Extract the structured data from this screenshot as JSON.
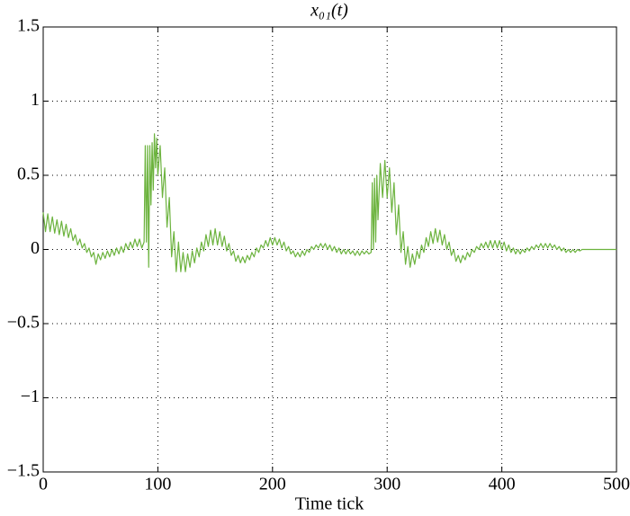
{
  "chart_data": {
    "type": "line",
    "title": "x₀₁(t)",
    "xlabel": "Time tick",
    "xlim": [
      0,
      500
    ],
    "ylim": [
      -1.5,
      1.5
    ],
    "xticks": [
      0,
      100,
      200,
      300,
      400,
      500
    ],
    "yticks": [
      {
        "value": -1.5,
        "label": "−1.5"
      },
      {
        "value": -1,
        "label": "−1"
      },
      {
        "value": -0.5,
        "label": "−0.5"
      },
      0,
      0.5,
      1,
      1.5
    ],
    "grid": true,
    "x": [
      0,
      2,
      4,
      6,
      8,
      10,
      12,
      14,
      16,
      18,
      20,
      22,
      24,
      26,
      28,
      30,
      32,
      34,
      36,
      38,
      40,
      42,
      44,
      46,
      48,
      50,
      52,
      54,
      56,
      58,
      60,
      62,
      64,
      66,
      68,
      70,
      72,
      74,
      76,
      78,
      80,
      82,
      84,
      86,
      88,
      89,
      90,
      91,
      92,
      93,
      94,
      95,
      96,
      97,
      98,
      99,
      100,
      102,
      104,
      106,
      108,
      110,
      112,
      114,
      116,
      118,
      120,
      122,
      124,
      126,
      128,
      130,
      132,
      134,
      136,
      138,
      140,
      142,
      144,
      146,
      148,
      150,
      152,
      154,
      156,
      158,
      160,
      162,
      164,
      166,
      168,
      170,
      172,
      174,
      176,
      178,
      180,
      182,
      184,
      186,
      188,
      190,
      192,
      194,
      196,
      198,
      200,
      202,
      204,
      206,
      208,
      210,
      212,
      214,
      216,
      218,
      220,
      222,
      224,
      226,
      228,
      230,
      232,
      234,
      236,
      238,
      240,
      242,
      244,
      246,
      248,
      250,
      252,
      254,
      256,
      258,
      260,
      262,
      264,
      266,
      268,
      270,
      272,
      274,
      276,
      278,
      280,
      282,
      284,
      286,
      287,
      288,
      289,
      290,
      291,
      292,
      294,
      296,
      298,
      300,
      302,
      304,
      306,
      308,
      310,
      312,
      314,
      316,
      318,
      320,
      322,
      324,
      326,
      328,
      330,
      332,
      334,
      336,
      338,
      340,
      342,
      344,
      346,
      348,
      350,
      352,
      354,
      356,
      358,
      360,
      362,
      364,
      366,
      368,
      370,
      372,
      374,
      376,
      378,
      380,
      382,
      384,
      386,
      388,
      390,
      392,
      394,
      396,
      398,
      400,
      402,
      404,
      406,
      408,
      410,
      412,
      414,
      416,
      418,
      420,
      422,
      424,
      426,
      428,
      430,
      432,
      434,
      436,
      438,
      440,
      442,
      444,
      446,
      448,
      450,
      452,
      454,
      456,
      458,
      460,
      462,
      464,
      466,
      468,
      470,
      472,
      480,
      490,
      500
    ],
    "series": [
      {
        "color": "#6cb33e",
        "values": [
          0.25,
          0.12,
          0.24,
          0.12,
          0.22,
          0.11,
          0.2,
          0.1,
          0.19,
          0.09,
          0.17,
          0.08,
          0.14,
          0.06,
          0.1,
          0.03,
          0.07,
          0.01,
          0.04,
          -0.02,
          0.01,
          -0.05,
          -0.02,
          -0.1,
          -0.03,
          -0.07,
          -0.02,
          -0.06,
          -0.01,
          -0.05,
          0,
          -0.04,
          0.01,
          -0.03,
          0.02,
          -0.02,
          0.04,
          0,
          0.05,
          0.01,
          0.07,
          0.02,
          0.07,
          0.01,
          0.05,
          0.7,
          0.05,
          0.7,
          -0.12,
          0.7,
          0.3,
          0.72,
          0.4,
          0.78,
          0.55,
          0.75,
          0.5,
          0.7,
          0.35,
          0.55,
          0.15,
          0.35,
          -0.05,
          0.12,
          -0.15,
          0.05,
          -0.15,
          -0.02,
          -0.15,
          -0.03,
          -0.12,
          -0.01,
          -0.09,
          0.01,
          -0.05,
          0.05,
          -0.01,
          0.1,
          0.02,
          0.13,
          0.03,
          0.14,
          0.03,
          0.12,
          0.02,
          0.09,
          -0.01,
          0.04,
          -0.04,
          -0.01,
          -0.08,
          -0.04,
          -0.09,
          -0.05,
          -0.09,
          -0.04,
          -0.07,
          -0.02,
          -0.05,
          0.01,
          -0.02,
          0.03,
          0.01,
          0.06,
          0.02,
          0.08,
          0.03,
          0.08,
          0.03,
          0.07,
          0.01,
          0.05,
          -0.01,
          0.02,
          -0.03,
          -0.01,
          -0.05,
          -0.02,
          -0.05,
          -0.01,
          -0.04,
          0,
          -0.02,
          0.02,
          0,
          0.03,
          0.01,
          0.04,
          0.01,
          0.04,
          0,
          0.03,
          -0.01,
          0.02,
          -0.02,
          0.01,
          -0.03,
          0,
          -0.03,
          0,
          -0.03,
          -0.01,
          -0.04,
          -0.01,
          -0.04,
          -0.01,
          -0.03,
          -0.01,
          -0.03,
          -0.02,
          0.45,
          0,
          0.48,
          0.05,
          0.5,
          0.2,
          0.58,
          0.35,
          0.6,
          0.35,
          0.55,
          0.25,
          0.45,
          0.1,
          0.3,
          -0.02,
          0.12,
          -0.1,
          0.02,
          -0.12,
          -0.03,
          -0.1,
          -0.01,
          -0.06,
          0.03,
          -0.02,
          0.08,
          0.02,
          0.12,
          0.04,
          0.14,
          0.05,
          0.13,
          0.03,
          0.1,
          0,
          0.05,
          -0.04,
          0,
          -0.08,
          -0.04,
          -0.09,
          -0.04,
          -0.07,
          -0.02,
          -0.05,
          0,
          -0.02,
          0.02,
          0,
          0.04,
          0.01,
          0.05,
          0.01,
          0.06,
          0.01,
          0.06,
          0.01,
          0.06,
          0,
          0.05,
          -0.01,
          0.03,
          -0.02,
          0.01,
          -0.03,
          0,
          -0.03,
          0,
          -0.02,
          0.01,
          -0.01,
          0.02,
          0,
          0.03,
          0.01,
          0.04,
          0.01,
          0.04,
          0.01,
          0.04,
          0.01,
          0.03,
          0,
          0.02,
          -0.01,
          0.01,
          -0.02,
          0,
          -0.02,
          0,
          -0.02,
          0,
          -0.01,
          0,
          0,
          0,
          0,
          0
        ]
      }
    ]
  }
}
